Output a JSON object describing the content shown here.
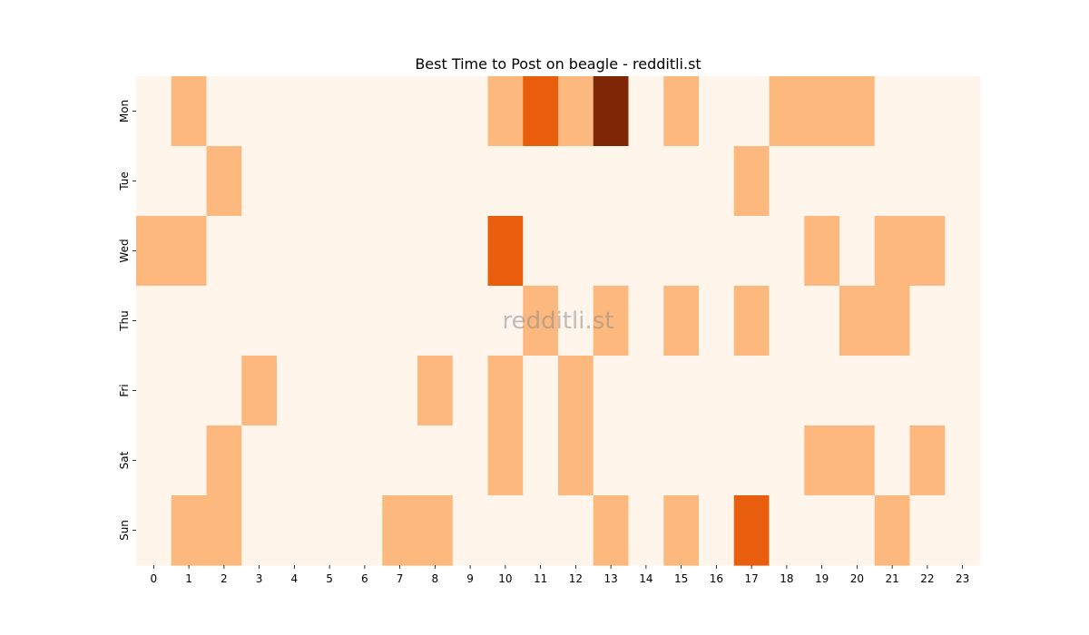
{
  "chart_data": {
    "type": "heatmap",
    "title": "Best Time to Post on beagle - redditli.st",
    "watermark": "redditli.st",
    "xlabel": "",
    "ylabel": "",
    "x_labels": [
      "0",
      "1",
      "2",
      "3",
      "4",
      "5",
      "6",
      "7",
      "8",
      "9",
      "10",
      "11",
      "12",
      "13",
      "14",
      "15",
      "16",
      "17",
      "18",
      "19",
      "20",
      "21",
      "22",
      "23"
    ],
    "y_labels": [
      "Mon",
      "Tue",
      "Wed",
      "Thu",
      "Fri",
      "Sat",
      "Sun"
    ],
    "values": [
      [
        0,
        1,
        0,
        0,
        0,
        0,
        0,
        0,
        0,
        0,
        1,
        2,
        1,
        3,
        0,
        1,
        0,
        0,
        1,
        1,
        1,
        0,
        0,
        0
      ],
      [
        0,
        0,
        1,
        0,
        0,
        0,
        0,
        0,
        0,
        0,
        0,
        0,
        0,
        0,
        0,
        0,
        0,
        1,
        0,
        0,
        0,
        0,
        0,
        0
      ],
      [
        1,
        1,
        0,
        0,
        0,
        0,
        0,
        0,
        0,
        0,
        2,
        0,
        0,
        0,
        0,
        0,
        0,
        0,
        0,
        1,
        0,
        1,
        1,
        0
      ],
      [
        0,
        0,
        0,
        0,
        0,
        0,
        0,
        0,
        0,
        0,
        0,
        1,
        0,
        1,
        0,
        1,
        0,
        1,
        0,
        0,
        1,
        1,
        0,
        0
      ],
      [
        0,
        0,
        0,
        1,
        0,
        0,
        0,
        0,
        1,
        0,
        1,
        0,
        1,
        0,
        0,
        0,
        0,
        0,
        0,
        0,
        0,
        0,
        0,
        0
      ],
      [
        0,
        0,
        1,
        0,
        0,
        0,
        0,
        0,
        0,
        0,
        1,
        0,
        1,
        0,
        0,
        0,
        0,
        0,
        0,
        1,
        1,
        0,
        1,
        0
      ],
      [
        0,
        1,
        1,
        0,
        0,
        0,
        0,
        1,
        1,
        0,
        0,
        0,
        0,
        1,
        0,
        1,
        0,
        2,
        0,
        0,
        0,
        1,
        0,
        0
      ]
    ],
    "colormap": "Oranges",
    "colors": {
      "0": "#fff5eb",
      "1": "#fdb97d",
      "2": "#e95e0d",
      "3": "#7f2704"
    },
    "grid": false,
    "legend": "none"
  }
}
